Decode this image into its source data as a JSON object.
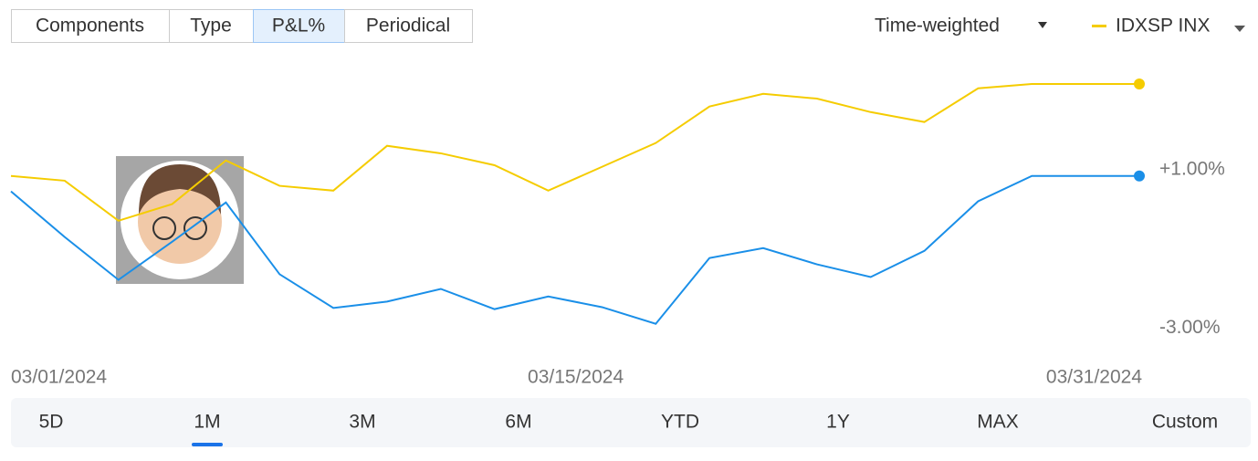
{
  "tabs": [
    "Components",
    "Type",
    "P&L%",
    "Periodical"
  ],
  "active_tab": 2,
  "method": "Time-weighted",
  "ranges": [
    "5D",
    "1M",
    "3M",
    "6M",
    "YTD",
    "1Y",
    "MAX",
    "Custom"
  ],
  "active_range": 1,
  "chart_data": {
    "type": "line",
    "categories": [
      "03/01/2024",
      null,
      null,
      null,
      null,
      null,
      null,
      null,
      null,
      null,
      "03/15/2024",
      null,
      null,
      null,
      null,
      null,
      null,
      null,
      null,
      null,
      null,
      "03/31/2024"
    ],
    "series": [
      {
        "name": "IDXSP INX",
        "color": "#f5cc00",
        "values": [
          0.84,
          0.72,
          -0.29,
          0.13,
          1.23,
          0.59,
          0.47,
          1.6,
          1.41,
          1.11,
          0.47,
          1.07,
          1.67,
          2.59,
          2.91,
          2.79,
          2.45,
          2.2,
          3.05,
          3.16,
          3.16,
          3.16
        ]
      },
      {
        "color": "#1a8fe8",
        "values": [
          0.45,
          -0.7,
          -1.78,
          -0.82,
          0.17,
          -1.64,
          -2.49,
          -2.33,
          -2.01,
          -2.52,
          -2.2,
          -2.47,
          -2.89,
          -1.23,
          -0.98,
          -1.39,
          -1.71,
          -1.05,
          0.2,
          0.84,
          0.84,
          0.84
        ]
      }
    ],
    "ylim": [
      -3.7,
      3.7
    ],
    "yticks": [
      {
        "value": 1,
        "label": "+1.00%"
      },
      {
        "value": -3,
        "label": "-3.00%"
      }
    ]
  }
}
